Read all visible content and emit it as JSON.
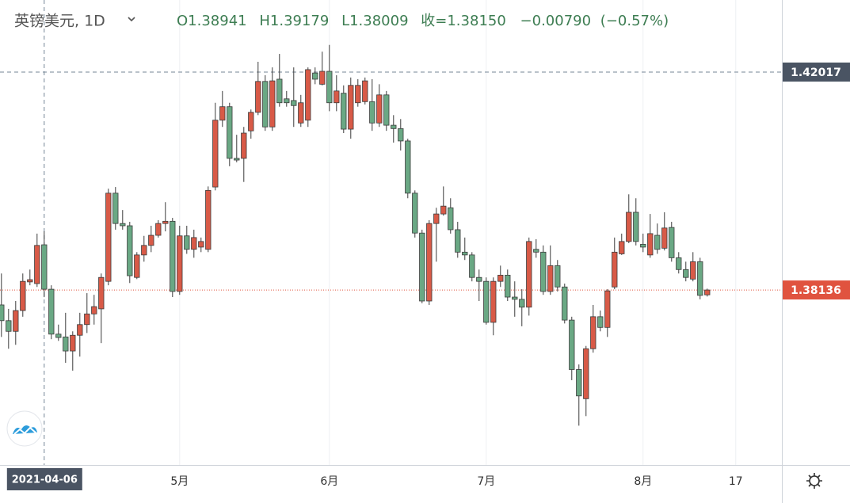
{
  "chart_data": {
    "type": "candlestick",
    "title": "英镑美元, 1D",
    "readout": {
      "o_label": "O",
      "open": 1.38941,
      "h_label": "H",
      "high": 1.39179,
      "l_label": "L",
      "low": 1.38009,
      "c_label": "收=",
      "close": {
        "value": 1.3815,
        "label": "1.38150"
      },
      "change": {
        "value": -0.0079,
        "label": "−0.00790"
      },
      "change_pct": {
        "value": -0.57,
        "label": "(−0.57%)"
      },
      "color": "#3d7d52"
    },
    "series": [
      {
        "up_color": "#d85a47",
        "down_color": "#6aa884",
        "border_color": "#3b3b3b",
        "open": [
          1.3787,
          1.3759,
          1.374,
          1.3777,
          1.3828,
          1.3825,
          1.38941,
          1.3815,
          1.3735,
          1.373,
          1.3705,
          1.3733,
          1.3752,
          1.3771,
          1.378,
          1.3829,
          1.3986,
          1.3932,
          1.3928,
          1.3836,
          1.3876,
          1.3893,
          1.3911,
          1.3932,
          1.3936,
          1.3811,
          1.391,
          1.3886,
          1.389,
          1.3886,
          1.3997,
          1.4116,
          1.414,
          1.4048,
          1.4048,
          1.4097,
          1.413,
          1.4185,
          1.4104,
          1.4189,
          1.4154,
          1.4151,
          1.4111,
          1.4116,
          1.42,
          1.418,
          1.4203,
          1.4147,
          1.4164,
          1.41,
          1.4147,
          1.4149,
          1.4149,
          1.4111,
          1.4161,
          1.4107,
          1.4101,
          1.4079,
          1.3986,
          1.3915,
          1.3794,
          1.3932,
          1.3949,
          1.396,
          1.3921,
          1.3881,
          1.3876,
          1.3836,
          1.3829,
          1.3756,
          1.3829,
          1.384,
          1.3801,
          1.3797,
          1.3783,
          1.3886,
          1.3881,
          1.3811,
          1.3857,
          1.3819,
          1.376,
          1.3672,
          1.362,
          1.3709,
          1.3766,
          1.3747,
          1.3819,
          1.3878,
          1.39,
          1.3952,
          1.3895,
          1.3876,
          1.3911,
          1.3888,
          1.3925,
          1.3871,
          1.385,
          1.3833,
          1.3864,
          1.3805
        ],
        "high": [
          1.3843,
          1.378,
          1.3794,
          1.3843,
          1.385,
          1.3914,
          1.39179,
          1.3822,
          1.3752,
          1.3773,
          1.374,
          1.3773,
          1.3808,
          1.3805,
          1.3843,
          1.3994,
          1.3997,
          1.3956,
          1.3935,
          1.3881,
          1.391,
          1.3928,
          1.3938,
          1.397,
          1.3942,
          1.3928,
          1.3928,
          1.3921,
          1.3907,
          1.3998,
          1.4147,
          1.4168,
          1.4147,
          1.409,
          1.4104,
          1.4135,
          1.422,
          1.4196,
          1.421,
          1.4234,
          1.4168,
          1.421,
          1.4161,
          1.421,
          1.421,
          1.4238,
          1.425,
          1.4196,
          1.4178,
          1.4192,
          1.4189,
          1.4192,
          1.4189,
          1.418,
          1.4168,
          1.4125,
          1.4118,
          1.4083,
          1.3991,
          1.3921,
          1.3938,
          1.396,
          1.3998,
          1.3977,
          1.3935,
          1.3907,
          1.3881,
          1.385,
          1.3836,
          1.3836,
          1.3857,
          1.385,
          1.3829,
          1.3815,
          1.3907,
          1.3904,
          1.3893,
          1.3893,
          1.3867,
          1.3825,
          1.3766,
          1.3681,
          1.3714,
          1.3787,
          1.3777,
          1.3815,
          1.3907,
          1.3914,
          1.3984,
          1.3977,
          1.3914,
          1.3949,
          1.3932,
          1.3952,
          1.3935,
          1.3881,
          1.3864,
          1.3881,
          1.3871,
          1.3816
        ],
        "low": [
          1.373,
          1.3709,
          1.3716,
          1.3766,
          1.3822,
          1.3819,
          1.38009,
          1.3726,
          1.3723,
          1.3684,
          1.367,
          1.3695,
          1.3737,
          1.3752,
          1.3719,
          1.3822,
          1.3921,
          1.3921,
          1.3826,
          1.3833,
          1.3864,
          1.3881,
          1.3907,
          1.3918,
          1.3801,
          1.3805,
          1.3878,
          1.3871,
          1.3881,
          1.3881,
          1.3991,
          1.4104,
          1.4034,
          1.4041,
          1.4006,
          1.4083,
          1.4125,
          1.4097,
          1.4097,
          1.414,
          1.414,
          1.4104,
          1.4104,
          1.4104,
          1.418,
          1.4178,
          1.4132,
          1.4132,
          1.4093,
          1.4083,
          1.414,
          1.4144,
          1.4097,
          1.4104,
          1.4097,
          1.4076,
          1.4062,
          1.3977,
          1.3907,
          1.379,
          1.3787,
          1.3864,
          1.3946,
          1.3914,
          1.3871,
          1.3867,
          1.3829,
          1.3794,
          1.3752,
          1.3733,
          1.3819,
          1.3794,
          1.3766,
          1.3749,
          1.3768,
          1.3871,
          1.3805,
          1.3805,
          1.3811,
          1.3754,
          1.3653,
          1.3572,
          1.3589,
          1.3702,
          1.374,
          1.373,
          1.3815,
          1.3876,
          1.3897,
          1.3893,
          1.3881,
          1.3871,
          1.3878,
          1.3884,
          1.3864,
          1.3843,
          1.3829,
          1.3829,
          1.3797,
          1.3802
        ],
        "close": [
          1.3759,
          1.374,
          1.3777,
          1.3829,
          1.3832,
          1.3893,
          1.3815,
          1.3735,
          1.3729,
          1.3705,
          1.3733,
          1.3752,
          1.3771,
          1.3784,
          1.3836,
          1.3986,
          1.3932,
          1.3928,
          1.3839,
          1.3876,
          1.3893,
          1.3911,
          1.3932,
          1.3936,
          1.3811,
          1.391,
          1.3886,
          1.3907,
          1.39,
          1.3991,
          1.4116,
          1.414,
          1.4048,
          1.4045,
          1.4093,
          1.413,
          1.4185,
          1.4104,
          1.4186,
          1.4147,
          1.4147,
          1.4142,
          1.4147,
          1.4206,
          1.4189,
          1.4203,
          1.4147,
          1.4168,
          1.41,
          1.4178,
          1.4178,
          1.4186,
          1.4111,
          1.4161,
          1.4107,
          1.4101,
          1.4079,
          1.3986,
          1.3915,
          1.3794,
          1.3932,
          1.3949,
          1.3963,
          1.3921,
          1.3881,
          1.3876,
          1.3836,
          1.3829,
          1.3756,
          1.3829,
          1.384,
          1.3801,
          1.3797,
          1.3783,
          1.39,
          1.3881,
          1.3811,
          1.3857,
          1.3819,
          1.376,
          1.3672,
          1.3625,
          1.3709,
          1.3766,
          1.3747,
          1.3812,
          1.3881,
          1.39,
          1.3952,
          1.39,
          1.389,
          1.3914,
          1.3886,
          1.3924,
          1.3871,
          1.385,
          1.3836,
          1.3864,
          1.3804,
          1.38136
        ]
      }
    ],
    "xlim": [
      -0.2,
      109.47
    ],
    "xticks": [
      {
        "value": 25,
        "label": "5月"
      },
      {
        "value": 46,
        "label": "6月"
      },
      {
        "value": 68,
        "label": "7月"
      },
      {
        "value": 90,
        "label": "8月"
      },
      {
        "value": 103,
        "label": "17"
      }
    ],
    "ylim": [
      1.3502,
      1.433
    ],
    "grid": true,
    "crosshair": {
      "x": 6,
      "date": "2021-04-06",
      "price": 1.42017,
      "color": "#4a5463"
    },
    "last_price_color": "#e0533f"
  }
}
